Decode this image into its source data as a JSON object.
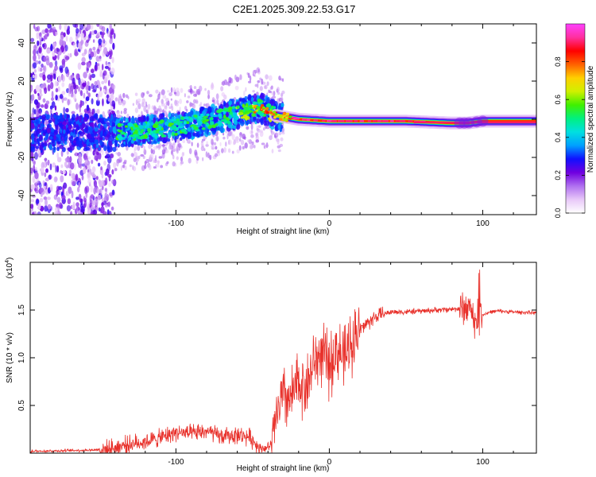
{
  "title": "C2E1.2025.309.22.53.G17",
  "colors": {
    "snr_line": "#e8302a",
    "frame": "#000000",
    "background": "#ffffff"
  },
  "chart_data": [
    {
      "type": "heatmap",
      "name": "spectrogram",
      "xlabel": "Height of straight line (km)",
      "ylabel": "Frequency (Hz)",
      "xlim": [
        -195,
        135
      ],
      "ylim": [
        -50,
        50
      ],
      "xticks": [
        -100,
        0,
        100
      ],
      "xtick_labels": [
        "-100",
        "0",
        "100"
      ],
      "yticks": [
        -40,
        -20,
        0,
        20,
        40
      ],
      "ytick_labels": [
        "-40",
        "-20",
        "0",
        "20",
        "40"
      ],
      "colorbar": {
        "label": "Normalized spectral amplitude",
        "range": [
          0,
          1
        ],
        "ticks": [
          0.0,
          0.2,
          0.4,
          0.6,
          0.8
        ],
        "tick_labels": [
          "0.0",
          "0.2",
          "0.4",
          "0.6",
          "0.8"
        ],
        "stops": [
          "#ffffff",
          "#e8c8f8",
          "#b070f0",
          "#7000e0",
          "#1010ff",
          "#00a0ff",
          "#00e0e0",
          "#00f080",
          "#40f000",
          "#d0f000",
          "#ffd000",
          "#ff6000",
          "#ff0000",
          "#ff30a0",
          "#ff40ff"
        ]
      },
      "ridge": [
        {
          "x": -195,
          "f": -7
        },
        {
          "x": -140,
          "f": -7
        },
        {
          "x": -120,
          "f": -6
        },
        {
          "x": -100,
          "f": -4
        },
        {
          "x": -80,
          "f": -1
        },
        {
          "x": -60,
          "f": 3
        },
        {
          "x": -45,
          "f": 6
        },
        {
          "x": -35,
          "f": 2
        },
        {
          "x": -20,
          "f": 0
        },
        {
          "x": 0,
          "f": -1
        },
        {
          "x": 50,
          "f": -1
        },
        {
          "x": 80,
          "f": -2
        },
        {
          "x": 90,
          "f": -2
        },
        {
          "x": 100,
          "f": -1
        },
        {
          "x": 135,
          "f": -1
        }
      ]
    },
    {
      "type": "line",
      "name": "snr",
      "xlabel": "Height of straight line (km)",
      "ylabel": "SNR (10 * v/v)",
      "yscale_label": "(x10",
      "yscale_exp": "4",
      "yscale_close": ")",
      "xlim": [
        -195,
        135
      ],
      "ylim": [
        0,
        2.0
      ],
      "xticks": [
        -100,
        0,
        100
      ],
      "xtick_labels": [
        "-100",
        "0",
        "100"
      ],
      "yticks": [
        0.5,
        1.0,
        1.5
      ],
      "ytick_labels": [
        "0.5",
        "1.0",
        "1.5"
      ],
      "series": [
        {
          "name": "SNR",
          "x": [
            -195,
            -160,
            -145,
            -135,
            -120,
            -110,
            -100,
            -90,
            -80,
            -70,
            -60,
            -52,
            -45,
            -40,
            -37,
            -35,
            -30,
            -25,
            -20,
            -15,
            -10,
            -5,
            0,
            5,
            10,
            15,
            20,
            30,
            40,
            50,
            60,
            70,
            80,
            88,
            92,
            96,
            98,
            100,
            105,
            110,
            120,
            135
          ],
          "y": [
            0.02,
            0.03,
            0.04,
            0.08,
            0.12,
            0.16,
            0.22,
            0.2,
            0.23,
            0.17,
            0.19,
            0.17,
            0.05,
            0.06,
            0.1,
            0.35,
            0.6,
            0.55,
            0.75,
            0.7,
            0.95,
            1.05,
            0.9,
            1.1,
            0.98,
            1.2,
            1.3,
            1.43,
            1.48,
            1.48,
            1.49,
            1.5,
            1.51,
            1.52,
            1.54,
            1.3,
            1.55,
            1.45,
            1.48,
            1.49,
            1.48,
            1.47
          ]
        }
      ]
    }
  ]
}
